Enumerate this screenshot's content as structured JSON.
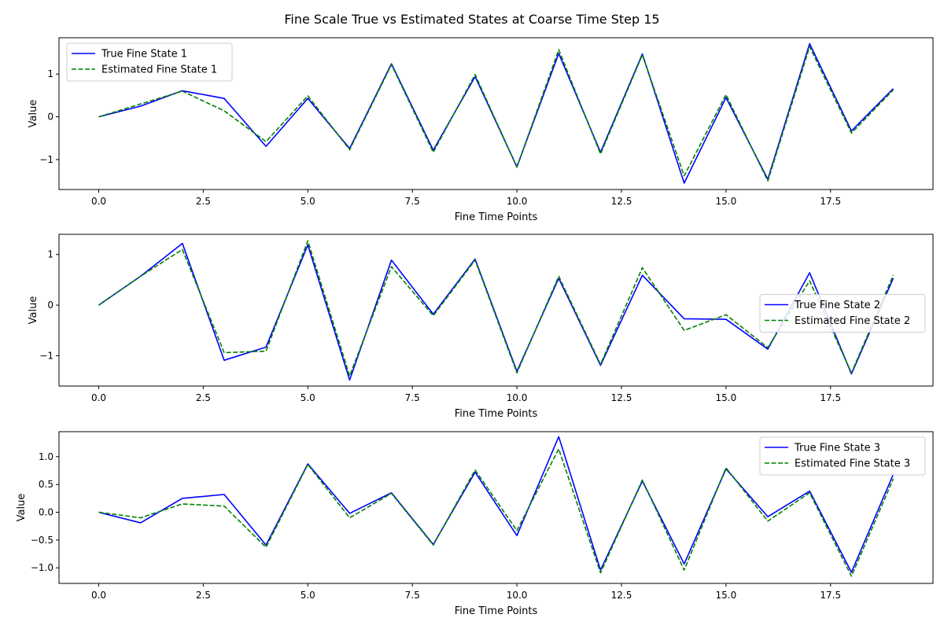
{
  "title": "Fine Scale True vs Estimated States at Coarse Time Step 15",
  "chart_data": [
    {
      "type": "line",
      "xlabel": "Fine Time Points",
      "ylabel": "Value",
      "xlim": [
        -0.95,
        19.95
      ],
      "ylim": [
        -1.7,
        1.85
      ],
      "xticks": [
        0,
        2.5,
        5,
        7.5,
        10,
        12.5,
        15,
        17.5
      ],
      "xtick_labels": [
        "0.0",
        "2.5",
        "5.0",
        "7.5",
        "10.0",
        "12.5",
        "15.0",
        "17.5"
      ],
      "yticks": [
        -1,
        0,
        1
      ],
      "ytick_labels": [
        "−1",
        "0",
        "1"
      ],
      "legend_position": "upper-left",
      "x": [
        0,
        1,
        2,
        3,
        4,
        5,
        6,
        7,
        8,
        9,
        10,
        11,
        12,
        13,
        14,
        15,
        16,
        17,
        18,
        19
      ],
      "series": [
        {
          "name": "True Fine State 1",
          "color": "#0000ff",
          "dash": "solid",
          "values": [
            0,
            0.25,
            0.61,
            0.43,
            -0.69,
            0.43,
            -0.74,
            1.24,
            -0.78,
            0.94,
            -1.17,
            1.48,
            -0.83,
            1.47,
            -1.55,
            0.45,
            -1.46,
            1.71,
            -0.33,
            0.66
          ]
        },
        {
          "name": "Estimated Fine State 1",
          "color": "#008000",
          "dash": "dashed",
          "values": [
            0,
            0.3,
            0.6,
            0.14,
            -0.58,
            0.49,
            -0.77,
            1.22,
            -0.83,
            0.99,
            -1.18,
            1.57,
            -0.87,
            1.45,
            -1.38,
            0.52,
            -1.5,
            1.64,
            -0.38,
            0.63
          ]
        }
      ]
    },
    {
      "type": "line",
      "xlabel": "Fine Time Points",
      "ylabel": "Value",
      "xlim": [
        -0.95,
        19.95
      ],
      "ylim": [
        -1.6,
        1.4
      ],
      "xticks": [
        0,
        2.5,
        5,
        7.5,
        10,
        12.5,
        15,
        17.5
      ],
      "xtick_labels": [
        "0.0",
        "2.5",
        "5.0",
        "7.5",
        "10.0",
        "12.5",
        "15.0",
        "17.5"
      ],
      "yticks": [
        -1,
        0,
        1
      ],
      "ytick_labels": [
        "−1",
        "0",
        "1"
      ],
      "legend_position": "center-right",
      "x": [
        0,
        1,
        2,
        3,
        4,
        5,
        6,
        7,
        8,
        9,
        10,
        11,
        12,
        13,
        14,
        15,
        16,
        17,
        18,
        19
      ],
      "series": [
        {
          "name": "True Fine State 2",
          "color": "#0000ff",
          "dash": "solid",
          "values": [
            0,
            0.57,
            1.22,
            -1.09,
            -0.83,
            1.19,
            -1.48,
            0.89,
            -0.18,
            0.91,
            -1.31,
            0.53,
            -1.19,
            0.59,
            -0.27,
            -0.28,
            -0.87,
            0.64,
            -1.36,
            0.53
          ]
        },
        {
          "name": "Estimated Fine State 2",
          "color": "#008000",
          "dash": "dashed",
          "values": [
            0,
            0.57,
            1.1,
            -0.94,
            -0.91,
            1.27,
            -1.4,
            0.76,
            -0.21,
            0.89,
            -1.34,
            0.57,
            -1.17,
            0.74,
            -0.5,
            -0.19,
            -0.84,
            0.48,
            -1.34,
            0.59
          ]
        }
      ]
    },
    {
      "type": "line",
      "xlabel": "Fine Time Points",
      "ylabel": "Value",
      "xlim": [
        -0.95,
        19.95
      ],
      "ylim": [
        -1.28,
        1.45
      ],
      "xticks": [
        0,
        2.5,
        5,
        7.5,
        10,
        12.5,
        15,
        17.5
      ],
      "xtick_labels": [
        "0.0",
        "2.5",
        "5.0",
        "7.5",
        "10.0",
        "12.5",
        "15.0",
        "17.5"
      ],
      "yticks": [
        -1,
        -0.5,
        0,
        0.5,
        1
      ],
      "ytick_labels": [
        "−1.0",
        "−0.5",
        "0.0",
        "0.5",
        "1.0"
      ],
      "legend_position": "upper-right",
      "x": [
        0,
        1,
        2,
        3,
        4,
        5,
        6,
        7,
        8,
        9,
        10,
        11,
        12,
        13,
        14,
        15,
        16,
        17,
        18,
        19
      ],
      "series": [
        {
          "name": "True Fine State 3",
          "color": "#0000ff",
          "dash": "solid",
          "values": [
            0,
            -0.19,
            0.25,
            0.32,
            -0.59,
            0.87,
            -0.02,
            0.35,
            -0.58,
            0.72,
            -0.42,
            1.36,
            -1.04,
            0.56,
            -0.93,
            0.78,
            -0.08,
            0.38,
            -1.08,
            0.68
          ]
        },
        {
          "name": "Estimated Fine State 3",
          "color": "#008000",
          "dash": "dashed",
          "values": [
            0,
            -0.1,
            0.15,
            0.11,
            -0.63,
            0.86,
            -0.1,
            0.34,
            -0.59,
            0.76,
            -0.33,
            1.14,
            -1.09,
            0.58,
            -1.04,
            0.8,
            -0.16,
            0.35,
            -1.15,
            0.6
          ]
        }
      ]
    }
  ]
}
